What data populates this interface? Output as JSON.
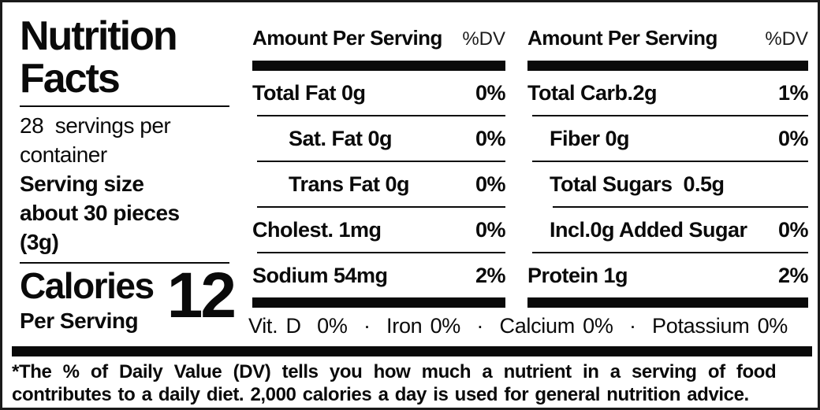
{
  "colors": {
    "text": "#0a0a0a",
    "background": "#ffffff",
    "bars": "#000000"
  },
  "left_panel": {
    "title": "Nutrition\nFacts",
    "servings_per_container": "28  servings per\ncontainer",
    "serving_size": "Serving size\nabout 30 pieces\n(3g)",
    "calories_label": "Calories",
    "calories_value": "12",
    "calories_subtitle": "Per Serving"
  },
  "columns": [
    {
      "header": "Amount Per Serving",
      "dv_header": "%DV",
      "rows": [
        {
          "name": "Total Fat 0g",
          "dv": "0%"
        },
        {
          "name": "Sat. Fat 0g",
          "dv": "0%"
        },
        {
          "name": "Trans Fat 0g",
          "dv": "0%"
        },
        {
          "name": "Cholest. 1mg",
          "dv": "0%"
        },
        {
          "name": "Sodium 54mg",
          "dv": "2%"
        }
      ]
    },
    {
      "header": "Amount Per Serving",
      "dv_header": "%DV",
      "rows": [
        {
          "name": "Total Carb.2g",
          "dv": "1%"
        },
        {
          "name": "Fiber 0g",
          "dv": "0%"
        },
        {
          "name": "Total Sugars  0.5g",
          "dv": ""
        },
        {
          "name": "Incl.0g Added Sugar",
          "dv": "0%"
        },
        {
          "name": "Protein 1g",
          "dv": "2%"
        }
      ]
    }
  ],
  "micronutrients": "Vit. D  0%  ·  Iron 0%  ·  Calcium 0%  ·  Potassium 0%",
  "footnote": {
    "line1": "*The % of Daily Value (DV) tells you how much a nutrient in a serving of food",
    "line2": "contributes to a daily diet. 2,000 calories a day is used for general nutrition advice."
  }
}
